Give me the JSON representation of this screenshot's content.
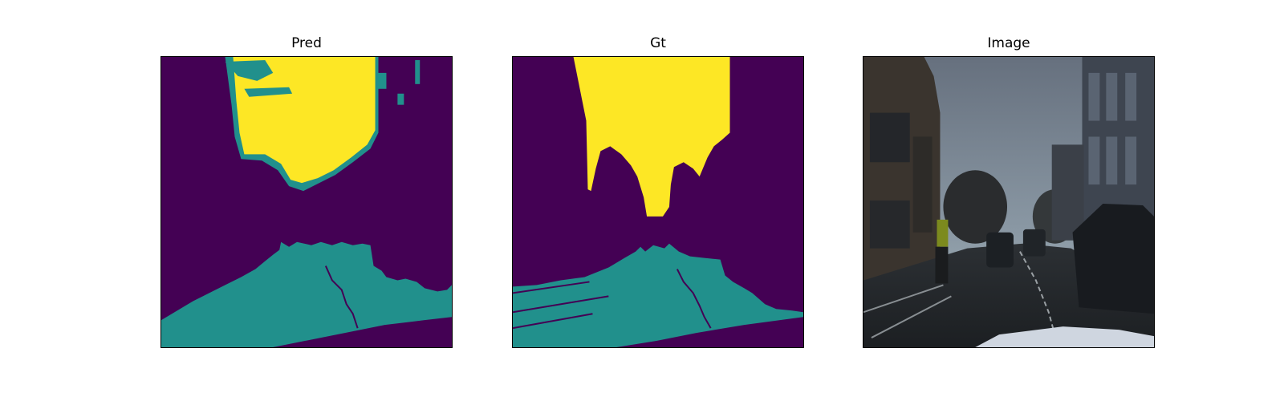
{
  "figure": {
    "panels": [
      {
        "title": "Pred"
      },
      {
        "title": "Gt"
      },
      {
        "title": "Image"
      }
    ]
  },
  "colors": {
    "background_class": "#440154",
    "road_class": "#21908c",
    "sky_class": "#fde725"
  }
}
